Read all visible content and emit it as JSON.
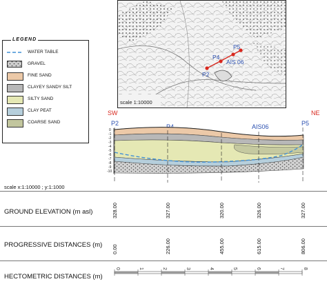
{
  "map": {
    "scale": "scale 1:10000",
    "label": "AIS 06",
    "points": [
      "P2",
      "P4",
      "P5"
    ]
  },
  "legend": {
    "title": "LEGEND",
    "items": [
      {
        "label": "WATER TABLE",
        "kind": "line",
        "color": "#3f8fd6"
      },
      {
        "label": "GRAVEL",
        "kind": "gravel",
        "color": "#c9c9c9"
      },
      {
        "label": "FINE SAND",
        "kind": "fill",
        "color": "#ecc9a8"
      },
      {
        "label": "CLAYEY SANDY SILT",
        "kind": "fill",
        "color": "#b8b8b8"
      },
      {
        "label": "SILTY SAND",
        "kind": "fill",
        "color": "#e5e8b4"
      },
      {
        "label": "CLAY PEAT",
        "kind": "fill",
        "color": "#b6cfdc"
      },
      {
        "label": "COARSE SAND",
        "kind": "fill",
        "color": "#c2c69e"
      }
    ]
  },
  "section": {
    "left_dir": "SW",
    "right_dir": "NE",
    "dir_color": "#d8281e",
    "station_color": "#2a4fb0",
    "stations": [
      "P2",
      "P4",
      "AIS06",
      "P5"
    ],
    "depth_ticks": [
      "0",
      "-1",
      "-2",
      "-3",
      "-4",
      "-5",
      "-6",
      "-7",
      "-8",
      "-9",
      "-10"
    ],
    "scale": "scale x:1:10000 ; y:1:1000"
  },
  "rows": {
    "ground_elevation": {
      "label": "GROUND ELEVATION (m asl)",
      "values": [
        "328.00",
        "327.00",
        "320.00",
        "326.00",
        "327.00"
      ]
    },
    "progressive": {
      "label": "PROGRESSIVE DISTANCES (m)",
      "values": [
        "0.00",
        "226.00",
        "455.00",
        "615.00",
        "806.00"
      ]
    },
    "hectometric": {
      "label": "HECTOMETRIC DISTANCES (m)",
      "ticks": [
        "0",
        "1",
        "2",
        "3",
        "4",
        "5",
        "6",
        "7",
        "8"
      ]
    }
  }
}
